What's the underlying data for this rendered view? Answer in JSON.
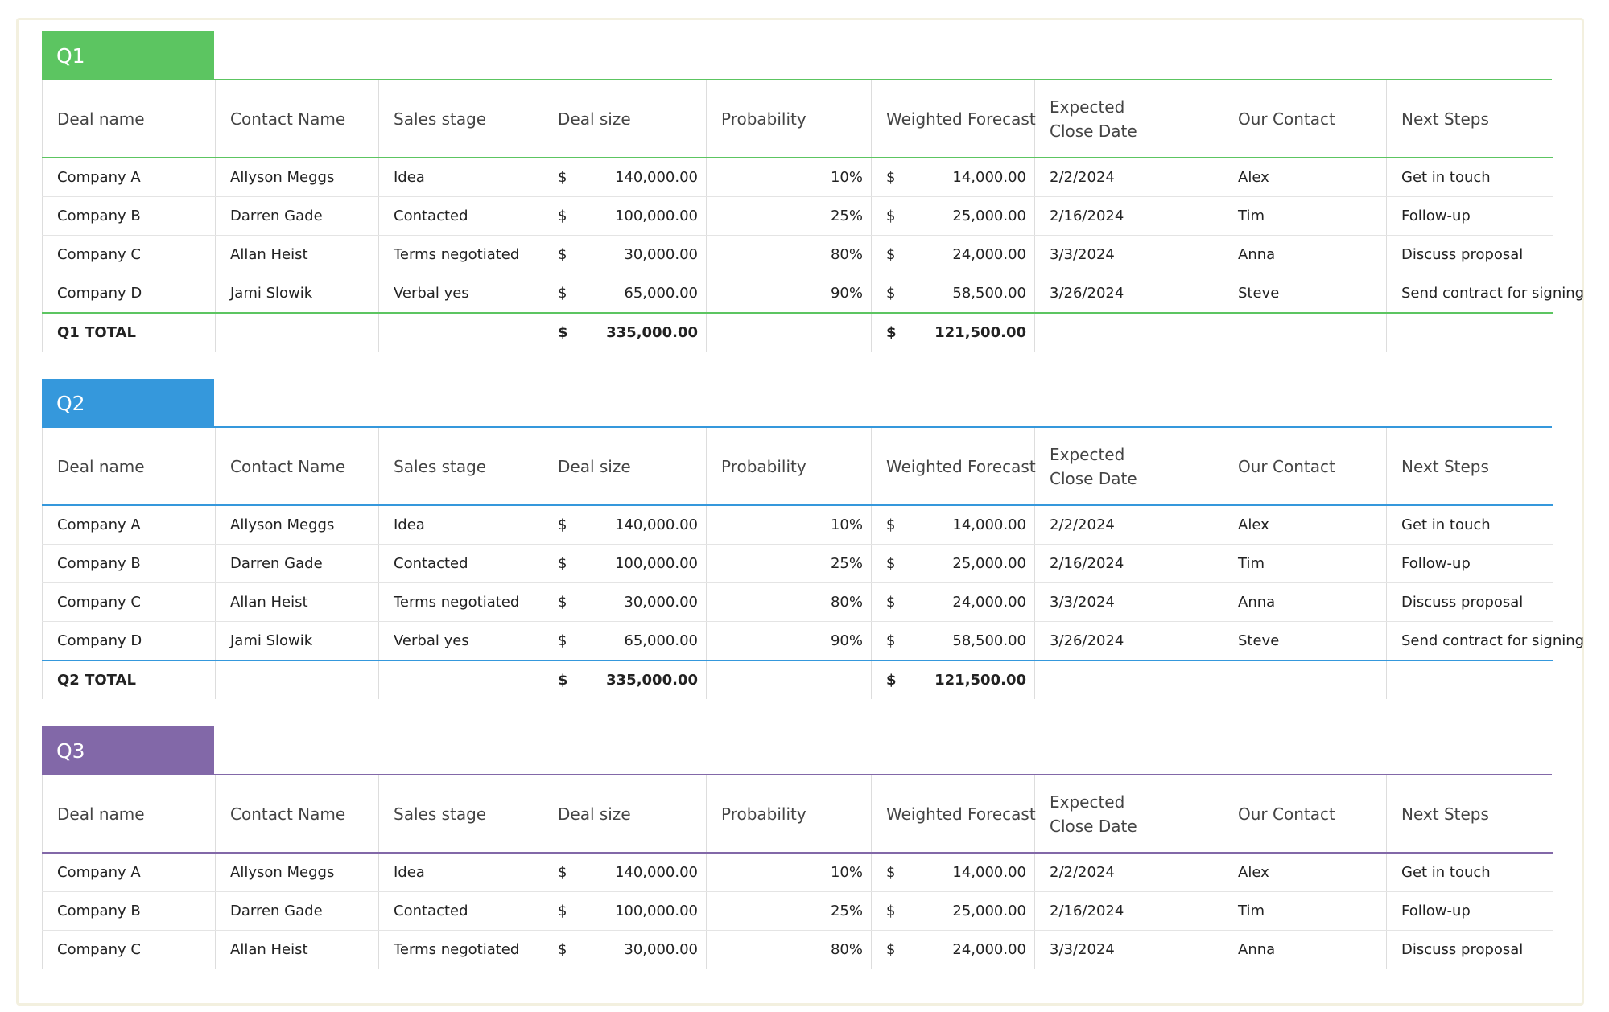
{
  "sections": [
    {
      "title": "Q1",
      "headers": [
        "Deal name",
        "Contact Name",
        "Sales stage",
        "Deal size",
        "Probability",
        "Weighted Forecast",
        "Expected Close Date",
        "Our Contact",
        "Next Steps"
      ],
      "rows": [
        [
          "Company A",
          "Allyson Meggs",
          "Idea",
          "$",
          "140,000.00",
          "10%",
          "$",
          "14,000.00",
          "2/2/2024",
          "Alex",
          "Get in touch"
        ],
        [
          "Company B",
          "Darren Gade",
          "Contacted",
          "$",
          "100,000.00",
          "25%",
          "$",
          "25,000.00",
          "2/16/2024",
          "Tim",
          "Follow-up"
        ],
        [
          "Company C",
          "Allan Heist",
          "Terms negotiated",
          "$",
          "30,000.00",
          "80%",
          "$",
          "24,000.00",
          "3/3/2024",
          "Anna",
          "Discuss proposal"
        ],
        [
          "Company D",
          "Jami Slowik",
          "Verbal yes",
          "$",
          "65,000.00",
          "90%",
          "$",
          "58,500.00",
          "3/26/2024",
          "Steve",
          "Send contract for signing"
        ]
      ],
      "total": {
        "label": "Q1 TOTAL",
        "deal_size": [
          "$",
          "335,000.00"
        ],
        "weighted": [
          "$",
          "121,500.00"
        ]
      }
    },
    {
      "title": "Q2",
      "headers": [
        "Deal name",
        "Contact Name",
        "Sales stage",
        "Deal size",
        "Probability",
        "Weighted Forecast",
        "Expected Close Date",
        "Our Contact",
        "Next Steps"
      ],
      "rows": [
        [
          "Company A",
          "Allyson Meggs",
          "Idea",
          "$",
          "140,000.00",
          "10%",
          "$",
          "14,000.00",
          "2/2/2024",
          "Alex",
          "Get in touch"
        ],
        [
          "Company B",
          "Darren Gade",
          "Contacted",
          "$",
          "100,000.00",
          "25%",
          "$",
          "25,000.00",
          "2/16/2024",
          "Tim",
          "Follow-up"
        ],
        [
          "Company C",
          "Allan Heist",
          "Terms negotiated",
          "$",
          "30,000.00",
          "80%",
          "$",
          "24,000.00",
          "3/3/2024",
          "Anna",
          "Discuss proposal"
        ],
        [
          "Company D",
          "Jami Slowik",
          "Verbal yes",
          "$",
          "65,000.00",
          "90%",
          "$",
          "58,500.00",
          "3/26/2024",
          "Steve",
          "Send contract for signing"
        ]
      ],
      "total": {
        "label": "Q2 TOTAL",
        "deal_size": [
          "$",
          "335,000.00"
        ],
        "weighted": [
          "$",
          "121,500.00"
        ]
      }
    },
    {
      "title": "Q3",
      "headers": [
        "Deal name",
        "Contact Name",
        "Sales stage",
        "Deal size",
        "Probability",
        "Weighted Forecast",
        "Expected Close Date",
        "Our Contact",
        "Next Steps"
      ],
      "rows": [
        [
          "Company A",
          "Allyson Meggs",
          "Idea",
          "$",
          "140,000.00",
          "10%",
          "$",
          "14,000.00",
          "2/2/2024",
          "Alex",
          "Get in touch"
        ],
        [
          "Company B",
          "Darren Gade",
          "Contacted",
          "$",
          "100,000.00",
          "25%",
          "$",
          "25,000.00",
          "2/16/2024",
          "Tim",
          "Follow-up"
        ],
        [
          "Company C",
          "Allan Heist",
          "Terms negotiated",
          "$",
          "30,000.00",
          "80%",
          "$",
          "24,000.00",
          "3/3/2024",
          "Anna",
          "Discuss proposal"
        ]
      ]
    }
  ]
}
